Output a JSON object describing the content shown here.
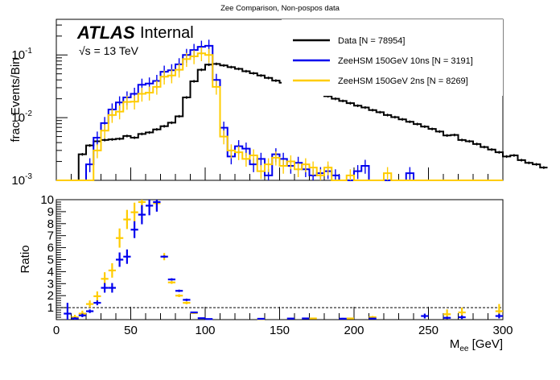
{
  "chart_data": [
    {
      "type": "step-histogram",
      "panel": "main",
      "title": "Zee Comparison, Non-pospos data",
      "xlabel": "M_ee [GeV]",
      "ylabel": "frac. Events/Bin",
      "xlim": [
        0,
        300
      ],
      "ylim": [
        0.001,
        0.37
      ],
      "yscale": "log",
      "bin_width": 5,
      "y_tick_labels": [
        {
          "base": "10",
          "exp": "-3",
          "value": 0.001
        },
        {
          "base": "10",
          "exp": "-2",
          "value": 0.01
        },
        {
          "base": "10",
          "exp": "-1",
          "value": 0.1
        }
      ],
      "annotation": {
        "atlas": "ATLAS",
        "label": "Internal",
        "energy_prefix": "√s = 13 TeV"
      },
      "legend": {
        "position": "top-right",
        "entries": [
          {
            "label": "Data [N = 78954]",
            "color": "#000000"
          },
          {
            "label": "ZeeHSM 150GeV 10ns [N = 3191]",
            "color": "#0000ee"
          },
          {
            "label": "ZeeHSM 150GeV 2ns [N = 8269]",
            "color": "#ffcc00"
          }
        ]
      },
      "series": [
        {
          "name": "Data [N = 78954]",
          "color": "#000000",
          "values": [
            0,
            0,
            0,
            0.0026,
            0.0036,
            0.0042,
            0.0044,
            0.0045,
            0.0046,
            0.0051,
            0.0048,
            0.0055,
            0.0058,
            0.0065,
            0.0073,
            0.0083,
            0.0105,
            0.021,
            0.038,
            0.058,
            0.07,
            0.072,
            0.068,
            0.064,
            0.06,
            0.055,
            0.051,
            0.047,
            0.043,
            0.039,
            0.036,
            0.033,
            0.03,
            0.028,
            0.026,
            0.024,
            0.022,
            0.02,
            0.0185,
            0.017,
            0.0155,
            0.0145,
            0.0132,
            0.0122,
            0.011,
            0.0102,
            0.0094,
            0.0086,
            0.0079,
            0.0072,
            0.0066,
            0.006,
            0.0052,
            0.0053,
            0.0044,
            0.0042,
            0.0038,
            0.0034,
            0.0031,
            0.0028,
            0.0024,
            0.0025,
            0.0021,
            0.0019,
            0.0018,
            0.0016
          ]
        },
        {
          "name": "ZeeHSM 150GeV 10ns [N = 3191]",
          "color": "#0000ee",
          "values": [
            0,
            0,
            0,
            0,
            0.0018,
            0.0048,
            0.0082,
            0.0135,
            0.0175,
            0.021,
            0.024,
            0.0335,
            0.035,
            0.0385,
            0.054,
            0.057,
            0.071,
            0.1,
            0.12,
            0.135,
            0.14,
            0.04,
            0.0069,
            0.0024,
            0.0035,
            0.0032,
            0.0018,
            0.0022,
            0.0012,
            0.0026,
            0.0022,
            0.0017,
            0.0019,
            0.0015,
            0.0012,
            0.0013,
            0.0014,
            0.0012,
            0,
            0,
            0.0014,
            0.0017,
            0,
            0,
            0,
            0,
            0,
            0.0013,
            0,
            0,
            0,
            0,
            0,
            0,
            0,
            0,
            0,
            0,
            0,
            0
          ]
        },
        {
          "name": "ZeeHSM 150GeV 2ns [N = 8269]",
          "color": "#ffcc00",
          "values": [
            0,
            0,
            0,
            0,
            0,
            0.003,
            0.0062,
            0.011,
            0.0125,
            0.0178,
            0.018,
            0.024,
            0.025,
            0.031,
            0.045,
            0.047,
            0.058,
            0.086,
            0.095,
            0.106,
            0.1,
            0.031,
            0.005,
            0.003,
            0.0028,
            0.0022,
            0.0025,
            0.0014,
            0.0018,
            0.0023,
            0.0017,
            0.002,
            0.0015,
            0.0018,
            0.0016,
            0.0012,
            0.0016,
            0,
            0,
            0.0012,
            0,
            0,
            0,
            0,
            0.0013,
            0,
            0,
            0,
            0,
            0,
            0,
            0,
            0,
            0,
            0,
            0,
            0,
            0,
            0,
            0
          ]
        }
      ]
    },
    {
      "type": "scatter-errorbar",
      "panel": "ratio",
      "xlabel": "M_ee [GeV]",
      "ylabel": "Ratio",
      "xlim": [
        0,
        300
      ],
      "ylim": [
        0,
        10
      ],
      "x_ticks": [
        0,
        50,
        100,
        150,
        200,
        250,
        300
      ],
      "y_ticks": [
        1,
        2,
        3,
        4,
        5,
        6,
        7,
        8,
        9,
        10
      ],
      "reference_line": 1,
      "series": [
        {
          "name": "ZeeHSM 150GeV 10ns / Data",
          "color": "#0000ee",
          "x": [
            7.5,
            12.5,
            17.5,
            22.5,
            27.5,
            32.5,
            37.5,
            42.5,
            47.5,
            52.5,
            57.5,
            62.5,
            67.5,
            72.5,
            77.5,
            82.5,
            87.5,
            92.5,
            97.5,
            102.5,
            137.5,
            157.5,
            167.5,
            192.5,
            212.5,
            247.5,
            262.5,
            272.5,
            297.5
          ],
          "y": [
            0.5,
            0.1,
            0.35,
            0.7,
            1.4,
            2.65,
            2.65,
            5.0,
            5.25,
            7.5,
            8.75,
            9.5,
            9.8,
            5.25,
            3.35,
            2.4,
            1.65,
            0.6,
            0.12,
            0.05,
            0.07,
            0.09,
            0.1,
            0.08,
            0.09,
            0.3,
            0.15,
            0.2,
            0.3
          ],
          "yerr": [
            0.9,
            0.1,
            0.15,
            0.15,
            0.2,
            0.4,
            0.4,
            0.6,
            0.6,
            0.7,
            0.8,
            0.8,
            0.8,
            0.1,
            0.1,
            0.1,
            0.1,
            0.05,
            0.03,
            0.03,
            0.05,
            0.06,
            0.06,
            0.06,
            0.06,
            0.2,
            0.1,
            0.15,
            0.2
          ]
        },
        {
          "name": "ZeeHSM 150GeV 2ns / Data",
          "color": "#ffcc00",
          "x": [
            12.5,
            17.5,
            22.5,
            27.5,
            32.5,
            37.5,
            42.5,
            47.5,
            52.5,
            57.5,
            67.5,
            72.5,
            77.5,
            82.5,
            87.5,
            92.5,
            137.5,
            172.5,
            197.5,
            212.5,
            262.5,
            272.5,
            297.5
          ],
          "y": [
            0.2,
            0.5,
            1.3,
            1.95,
            3.4,
            4.1,
            6.8,
            8.35,
            8.95,
            9.8,
            9.7,
            5.25,
            3.1,
            2.0,
            1.4,
            0.55,
            0.05,
            0.1,
            0.1,
            0.2,
            0.45,
            0.6,
            0.7
          ],
          "yerr": [
            0.2,
            0.25,
            0.3,
            0.4,
            0.55,
            0.6,
            0.8,
            0.8,
            0.8,
            0.6,
            0.5,
            0.3,
            0.12,
            0.12,
            0.12,
            0.08,
            0.03,
            0.06,
            0.06,
            0.1,
            0.4,
            0.4,
            0.6
          ]
        }
      ]
    }
  ]
}
